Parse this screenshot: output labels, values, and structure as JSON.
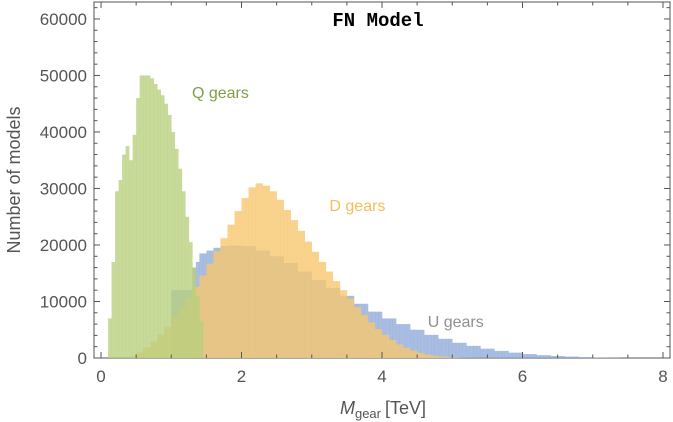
{
  "chart_data": {
    "type": "bar",
    "title": "FN Model",
    "xlabel": "M",
    "xlabel_subscript": "gear",
    "xlabel_unit": "[TeV]",
    "ylabel": "Number of models",
    "xlim": [
      -0.1,
      8.1
    ],
    "ylim": [
      0,
      63000
    ],
    "bin_width": 0.05,
    "x_ticks": [
      0,
      2,
      4,
      6,
      8
    ],
    "y_ticks": [
      0,
      10000,
      20000,
      30000,
      40000,
      50000,
      60000
    ],
    "y_tick_labels": [
      "0",
      "10000",
      "20000",
      "30000",
      "40000",
      "50000",
      "60000"
    ],
    "grid": false,
    "series": [
      {
        "name": "U gears",
        "color": "#8fabd9",
        "bins": [
          [
            1.0,
            12000
          ],
          [
            1.3,
            16000
          ],
          [
            1.35,
            17000
          ],
          [
            1.4,
            18500
          ],
          [
            1.45,
            18500
          ],
          [
            1.5,
            19000
          ],
          [
            1.55,
            19000
          ],
          [
            1.6,
            19500
          ],
          [
            1.65,
            19500
          ],
          [
            1.7,
            19800
          ],
          [
            1.8,
            19900
          ],
          [
            2.0,
            19800
          ],
          [
            2.2,
            19000
          ],
          [
            2.4,
            18000
          ],
          [
            2.6,
            16800
          ],
          [
            2.8,
            15300
          ],
          [
            3.0,
            13800
          ],
          [
            3.2,
            12400
          ],
          [
            3.4,
            11000
          ],
          [
            3.6,
            9600
          ],
          [
            3.8,
            8200
          ],
          [
            4.0,
            7000
          ],
          [
            4.2,
            6000
          ],
          [
            4.4,
            5000
          ],
          [
            4.6,
            4100
          ],
          [
            4.8,
            3400
          ],
          [
            5.0,
            2700
          ],
          [
            5.2,
            2150
          ],
          [
            5.4,
            1650
          ],
          [
            5.6,
            1250
          ],
          [
            5.8,
            950
          ],
          [
            6.0,
            700
          ],
          [
            6.2,
            500
          ],
          [
            6.4,
            350
          ],
          [
            6.6,
            250
          ],
          [
            6.8,
            150
          ],
          [
            7.0,
            90
          ],
          [
            7.2,
            50
          ],
          [
            7.4,
            15
          ],
          [
            7.6,
            0
          ]
        ]
      },
      {
        "name": "D gears",
        "color": "#f7c66e",
        "bins": [
          [
            0.35,
            0
          ],
          [
            0.4,
            300
          ],
          [
            0.5,
            1000
          ],
          [
            0.6,
            1900
          ],
          [
            0.7,
            2900
          ],
          [
            0.8,
            4200
          ],
          [
            0.9,
            5600
          ],
          [
            1.0,
            7200
          ],
          [
            1.1,
            8900
          ],
          [
            1.2,
            10700
          ],
          [
            1.3,
            12600
          ],
          [
            1.4,
            14600
          ],
          [
            1.5,
            16700
          ],
          [
            1.6,
            18900
          ],
          [
            1.7,
            21200
          ],
          [
            1.8,
            23600
          ],
          [
            1.9,
            26000
          ],
          [
            2.0,
            28300
          ],
          [
            2.1,
            30200
          ],
          [
            2.2,
            30900
          ],
          [
            2.3,
            30500
          ],
          [
            2.4,
            29500
          ],
          [
            2.5,
            28000
          ],
          [
            2.6,
            26200
          ],
          [
            2.7,
            24400
          ],
          [
            2.8,
            22500
          ],
          [
            2.9,
            20600
          ],
          [
            3.0,
            18800
          ],
          [
            3.1,
            17000
          ],
          [
            3.2,
            15300
          ],
          [
            3.3,
            13600
          ],
          [
            3.4,
            12000
          ],
          [
            3.5,
            10500
          ],
          [
            3.6,
            9000
          ],
          [
            3.7,
            7600
          ],
          [
            3.8,
            6300
          ],
          [
            3.9,
            5100
          ],
          [
            4.0,
            4100
          ],
          [
            4.1,
            3200
          ],
          [
            4.2,
            2400
          ],
          [
            4.3,
            1800
          ],
          [
            4.4,
            1300
          ],
          [
            4.5,
            900
          ],
          [
            4.6,
            600
          ],
          [
            4.7,
            400
          ],
          [
            4.8,
            250
          ],
          [
            4.9,
            150
          ],
          [
            5.0,
            80
          ],
          [
            5.1,
            30
          ],
          [
            5.2,
            0
          ]
        ]
      },
      {
        "name": "Q gears",
        "color": "#b7cf7e",
        "bins": [
          [
            0.1,
            7000
          ],
          [
            0.15,
            17000
          ],
          [
            0.2,
            29500
          ],
          [
            0.25,
            31500
          ],
          [
            0.3,
            36000
          ],
          [
            0.35,
            37500
          ],
          [
            0.4,
            35000
          ],
          [
            0.45,
            39500
          ],
          [
            0.5,
            46000
          ],
          [
            0.55,
            50000
          ],
          [
            0.6,
            50000
          ],
          [
            0.65,
            50000
          ],
          [
            0.7,
            49500
          ],
          [
            0.75,
            48500
          ],
          [
            0.8,
            47500
          ],
          [
            0.85,
            46500
          ],
          [
            0.9,
            45000
          ],
          [
            0.95,
            43000
          ],
          [
            1.0,
            40000
          ],
          [
            1.05,
            37000
          ],
          [
            1.1,
            33500
          ],
          [
            1.15,
            29500
          ],
          [
            1.2,
            25000
          ],
          [
            1.25,
            20500
          ],
          [
            1.3,
            16000
          ],
          [
            1.35,
            11000
          ],
          [
            1.4,
            6500
          ],
          [
            1.45,
            0
          ]
        ]
      }
    ],
    "series_labels": [
      {
        "name": "Q gears",
        "color": "#7f9f45",
        "x": 1.7,
        "y": 46000
      },
      {
        "name": "D gears",
        "color": "#f3bf58",
        "x": 3.65,
        "y": 26000
      },
      {
        "name": "U gears",
        "color": "#909090",
        "x": 5.05,
        "y": 5500
      }
    ]
  }
}
